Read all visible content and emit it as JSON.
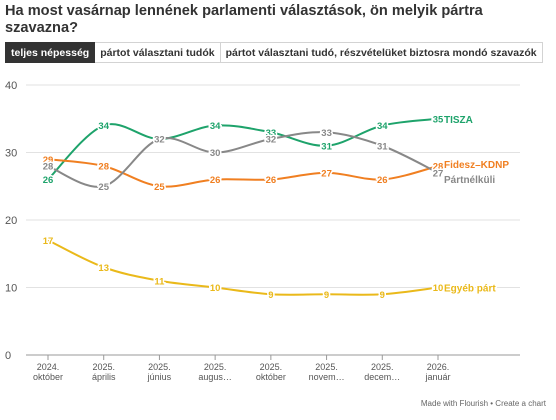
{
  "title": "Ha most vasárnap lennének parlamenti választások, ön melyik pártra szavazna?",
  "tabs": [
    {
      "label": "teljes népesség",
      "active": true
    },
    {
      "label": "pártot választani tudók",
      "active": false
    },
    {
      "label": "pártot választani tudó, részvételüket biztosra mondó szavazók",
      "active": false
    }
  ],
  "footer": {
    "made_with": "Made with Flourish",
    "separator": "•",
    "create": "Create a chart"
  },
  "chart_data": {
    "type": "line",
    "x": [
      "2024. október",
      "2025. április",
      "2025. június",
      "2025. augusztus",
      "2025. október",
      "2025. november",
      "2025. december",
      "2026. január"
    ],
    "x_tick_labels": [
      [
        "2024.",
        "október"
      ],
      [
        "2025.",
        "április"
      ],
      [
        "2025.",
        "június"
      ],
      [
        "2025.",
        "augus…"
      ],
      [
        "2025.",
        "október"
      ],
      [
        "2025.",
        "novem…"
      ],
      [
        "2025.",
        "decem…"
      ],
      [
        "2026.",
        "január"
      ]
    ],
    "ylim": [
      0,
      40
    ],
    "yticks": [
      0,
      10,
      20,
      30,
      40
    ],
    "grid": true,
    "legend": "end-of-line labels",
    "series": [
      {
        "name": "TISZA",
        "color": "#1ea36b",
        "values": [
          26,
          34,
          32,
          34,
          33,
          31,
          34,
          35
        ]
      },
      {
        "name": "Fidesz–KDNP",
        "color": "#f07f21",
        "values": [
          29,
          28,
          25,
          26,
          26,
          27,
          26,
          28
        ]
      },
      {
        "name": "Pártnélküli",
        "color": "#888888",
        "values": [
          28,
          25,
          32,
          30,
          32,
          33,
          31,
          27
        ]
      },
      {
        "name": "Egyéb párt",
        "color": "#eab91a",
        "values": [
          17,
          13,
          11,
          10,
          9,
          9,
          9,
          10
        ]
      }
    ]
  }
}
